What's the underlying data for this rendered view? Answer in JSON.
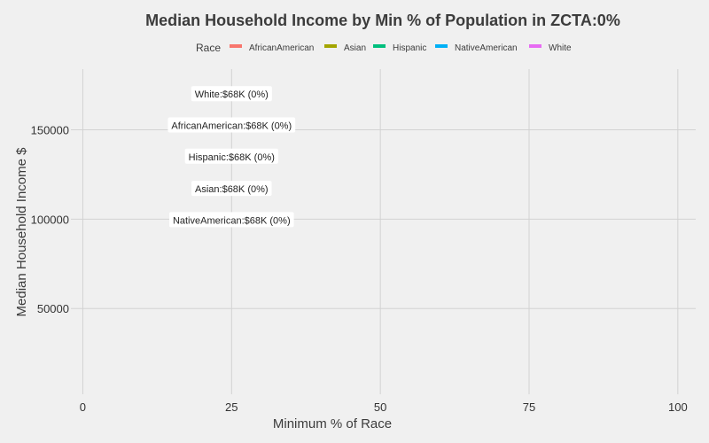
{
  "chart_data": {
    "type": "scatter",
    "title": "Median Household Income by Min % of Population in ZCTA:0%",
    "xlabel": "Minimum % of Race",
    "ylabel": "Median Household Income $",
    "xlim": [
      -2,
      103
    ],
    "ylim": [
      2000,
      184000
    ],
    "x_ticks": [
      0,
      25,
      50,
      75,
      100
    ],
    "x_tick_labels": [
      "0",
      "25",
      "50",
      "75",
      "100"
    ],
    "y_ticks": [
      50000,
      100000,
      150000
    ],
    "y_tick_labels": [
      "50000",
      "100000",
      "150000"
    ],
    "grid": true,
    "legend": {
      "title": "Race",
      "position": "top",
      "entries": [
        {
          "name": "AfricanAmerican",
          "color": "#f8766d"
        },
        {
          "name": "Asian",
          "color": "#a3a500"
        },
        {
          "name": "Hispanic",
          "color": "#00bf7d"
        },
        {
          "name": "NativeAmerican",
          "color": "#00b0f6"
        },
        {
          "name": "White",
          "color": "#e76bf3"
        }
      ]
    },
    "annotations": [
      {
        "text": "White:$68K (0%)",
        "x": 25,
        "y": 170000
      },
      {
        "text": "AfricanAmerican:$68K (0%)",
        "x": 25,
        "y": 152500
      },
      {
        "text": "Hispanic:$68K (0%)",
        "x": 25,
        "y": 135000
      },
      {
        "text": "Asian:$68K (0%)",
        "x": 25,
        "y": 117000
      },
      {
        "text": "NativeAmerican:$68K (0%)",
        "x": 25,
        "y": 99500
      }
    ]
  }
}
